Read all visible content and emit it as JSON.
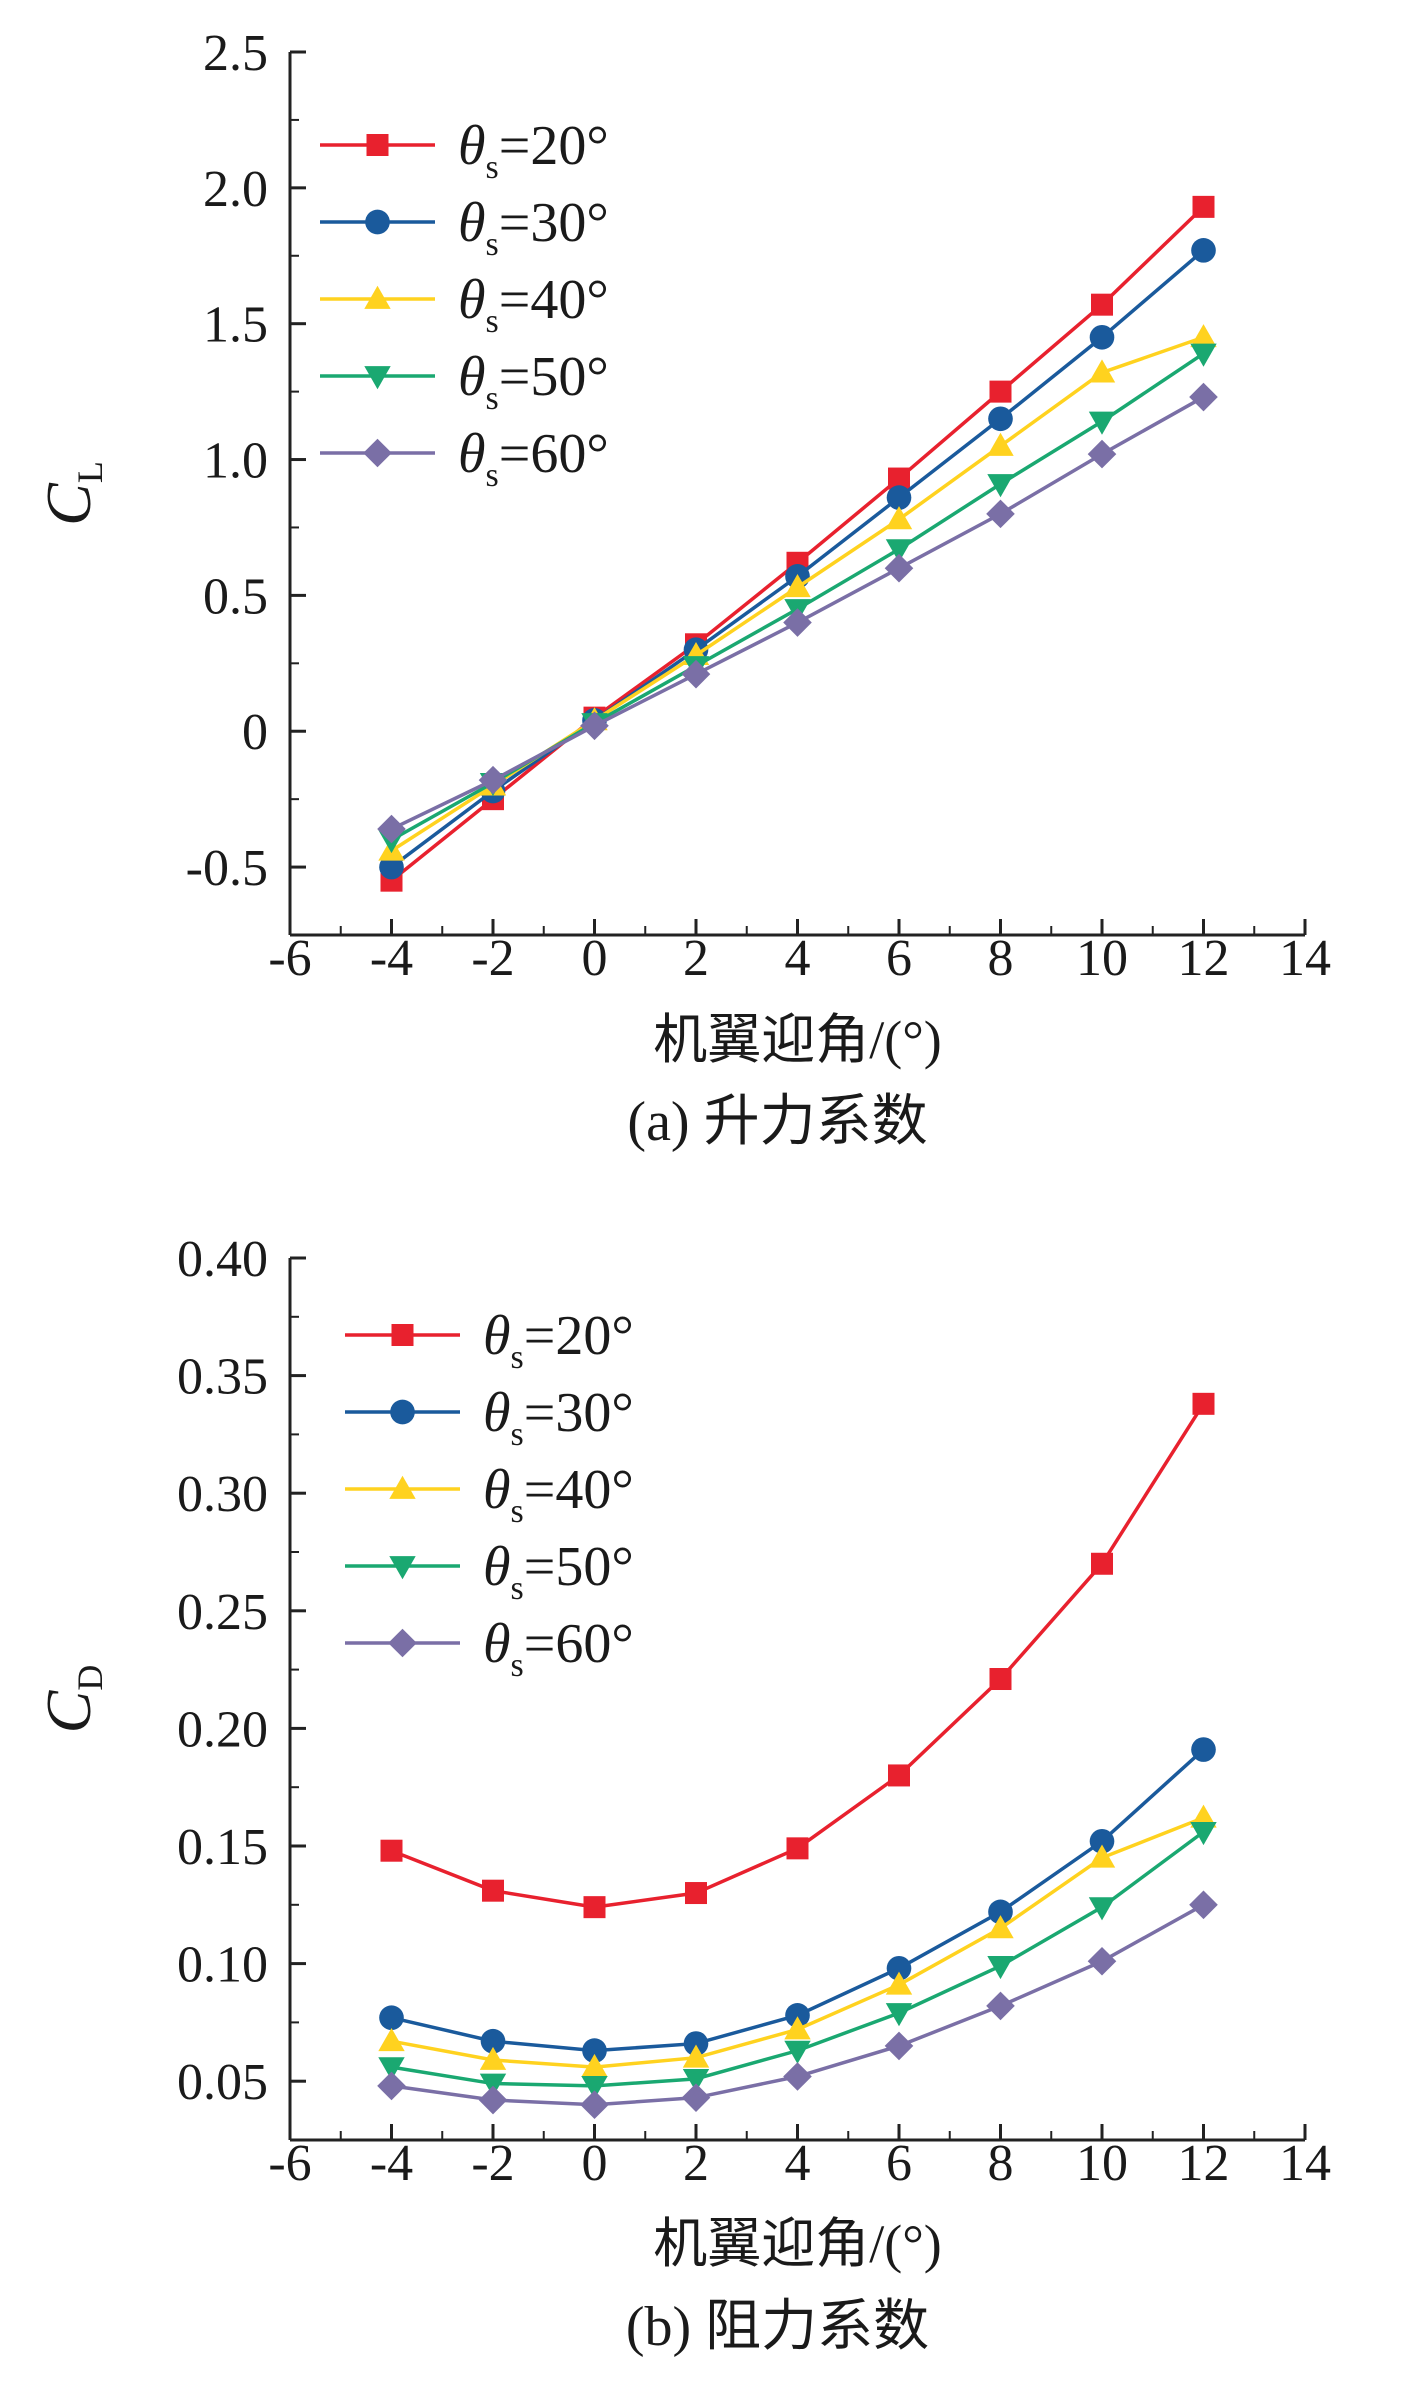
{
  "legend_symbol": "θ",
  "legend_symbol_sub": "s",
  "chart_data": [
    {
      "type": "line",
      "caption": "(a) 升力系数",
      "xlabel": "机翼迎角/(°)",
      "ylabel": "C",
      "ylabel_sub": "L",
      "xlim": [
        -6,
        14
      ],
      "ylim": [
        -0.75,
        2.5
      ],
      "xticks": [
        -6,
        -4,
        -2,
        0,
        2,
        4,
        6,
        8,
        10,
        12,
        14
      ],
      "xtick_labels": [
        "-6",
        "-4",
        "-2",
        "0",
        "2",
        "4",
        "6",
        "8",
        "10",
        "12",
        "14"
      ],
      "yticks": [
        -0.5,
        0,
        0.5,
        1.0,
        1.5,
        2.0,
        2.5
      ],
      "ytick_labels": [
        "-0.5",
        "0",
        "0.5",
        "1.0",
        "1.5",
        "2.0",
        "2.5"
      ],
      "legend_position": "top-left",
      "x": [
        -4,
        -2,
        0,
        2,
        4,
        6,
        8,
        10,
        12
      ],
      "series": [
        {
          "name": "=20°",
          "color": "#e8212e",
          "marker": "square",
          "values": [
            -0.55,
            -0.25,
            0.05,
            0.32,
            0.62,
            0.93,
            1.25,
            1.57,
            1.93
          ]
        },
        {
          "name": "=30°",
          "color": "#1a5a9c",
          "marker": "circle",
          "values": [
            -0.5,
            -0.22,
            0.04,
            0.3,
            0.57,
            0.86,
            1.15,
            1.45,
            1.77
          ]
        },
        {
          "name": "=40°",
          "color": "#ffd21f",
          "marker": "triangle-up",
          "values": [
            -0.44,
            -0.2,
            0.04,
            0.28,
            0.53,
            0.78,
            1.05,
            1.32,
            1.45
          ]
        },
        {
          "name": "=50°",
          "color": "#1aa871",
          "marker": "triangle-down",
          "values": [
            -0.4,
            -0.19,
            0.03,
            0.24,
            0.45,
            0.67,
            0.91,
            1.14,
            1.39
          ]
        },
        {
          "name": "=60°",
          "color": "#7a6fa6",
          "marker": "diamond",
          "values": [
            -0.36,
            -0.18,
            0.02,
            0.21,
            0.4,
            0.6,
            0.8,
            1.02,
            1.23
          ]
        }
      ]
    },
    {
      "type": "line",
      "caption": "(b) 阻力系数",
      "xlabel": "机翼迎角/(°)",
      "ylabel": "C",
      "ylabel_sub": "D",
      "xlim": [
        -6,
        14
      ],
      "ylim": [
        0.025,
        0.4
      ],
      "xticks": [
        -6,
        -4,
        -2,
        0,
        2,
        4,
        6,
        8,
        10,
        12,
        14
      ],
      "xtick_labels": [
        "-6",
        "-4",
        "-2",
        "0",
        "2",
        "4",
        "6",
        "8",
        "10",
        "12",
        "14"
      ],
      "yticks": [
        0.05,
        0.1,
        0.15,
        0.2,
        0.25,
        0.3,
        0.35,
        0.4
      ],
      "ytick_labels": [
        "0.05",
        "0.10",
        "0.15",
        "0.20",
        "0.25",
        "0.30",
        "0.35",
        "0.40"
      ],
      "legend_position": "top-left",
      "x": [
        -4,
        -2,
        0,
        2,
        4,
        6,
        8,
        10,
        12
      ],
      "series": [
        {
          "name": "=20°",
          "color": "#e8212e",
          "marker": "square",
          "values": [
            0.148,
            0.131,
            0.124,
            0.13,
            0.149,
            0.18,
            0.221,
            0.27,
            0.338
          ]
        },
        {
          "name": "=30°",
          "color": "#1a5a9c",
          "marker": "circle",
          "values": [
            0.077,
            0.067,
            0.063,
            0.066,
            0.078,
            0.098,
            0.122,
            0.152,
            0.191
          ]
        },
        {
          "name": "=40°",
          "color": "#ffd21f",
          "marker": "triangle-up",
          "values": [
            0.067,
            0.059,
            0.056,
            0.06,
            0.072,
            0.091,
            0.115,
            0.145,
            0.162
          ]
        },
        {
          "name": "=50°",
          "color": "#1aa871",
          "marker": "triangle-down",
          "values": [
            0.056,
            0.049,
            0.048,
            0.051,
            0.063,
            0.079,
            0.099,
            0.124,
            0.156
          ]
        },
        {
          "name": "=60°",
          "color": "#7a6fa6",
          "marker": "diamond",
          "values": [
            0.048,
            0.042,
            0.04,
            0.043,
            0.052,
            0.065,
            0.082,
            0.101,
            0.125
          ]
        }
      ]
    }
  ]
}
